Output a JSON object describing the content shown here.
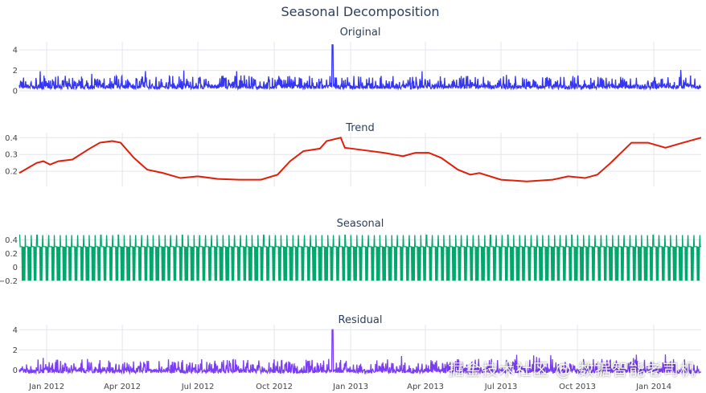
{
  "chart_data": {
    "type": "line",
    "title": "Seasonal Decomposition",
    "x_range": [
      "2011-11-29",
      "2014-02-27"
    ],
    "x_ticks": [
      "Jan 2012",
      "Apr 2012",
      "Jul 2012",
      "Oct 2012",
      "Jan 2013",
      "Apr 2013",
      "Jul 2013",
      "Oct 2013",
      "Jan 2014"
    ],
    "x_tick_dates": [
      "2012-01-01",
      "2012-04-01",
      "2012-07-01",
      "2012-10-01",
      "2013-01-01",
      "2013-04-01",
      "2013-07-01",
      "2013-10-01",
      "2014-01-01"
    ],
    "grid": true,
    "legend": "none",
    "panels": [
      {
        "name": "Original",
        "color": "#3535f5",
        "ylim": [
          0,
          4.8
        ],
        "y_ticks": [
          "0",
          "2",
          "4"
        ],
        "y_tick_values": [
          0,
          2,
          4
        ],
        "description_values": {
          "typical_range": [
            0,
            2
          ],
          "peak": {
            "date": "2012-12-10",
            "value": 4.5
          }
        }
      },
      {
        "name": "Trend",
        "color": "#e01e0a",
        "ylim": [
          0.11,
          0.43
        ],
        "y_ticks": [
          "0.2",
          "0.3",
          "0.4"
        ],
        "y_tick_values": [
          0.2,
          0.3,
          0.4
        ],
        "points": [
          [
            "2011-11-29",
            0.19
          ],
          [
            "2011-12-20",
            0.25
          ],
          [
            "2011-12-28",
            0.26
          ],
          [
            "2012-01-05",
            0.24
          ],
          [
            "2012-01-15",
            0.26
          ],
          [
            "2012-02-01",
            0.27
          ],
          [
            "2012-02-20",
            0.33
          ],
          [
            "2012-03-05",
            0.37
          ],
          [
            "2012-03-20",
            0.38
          ],
          [
            "2012-03-30",
            0.37
          ],
          [
            "2012-04-15",
            0.28
          ],
          [
            "2012-05-01",
            0.21
          ],
          [
            "2012-05-20",
            0.19
          ],
          [
            "2012-06-10",
            0.16
          ],
          [
            "2012-07-01",
            0.17
          ],
          [
            "2012-07-25",
            0.155
          ],
          [
            "2012-08-20",
            0.15
          ],
          [
            "2012-09-15",
            0.15
          ],
          [
            "2012-10-05",
            0.18
          ],
          [
            "2012-10-20",
            0.26
          ],
          [
            "2012-11-05",
            0.32
          ],
          [
            "2012-11-25",
            0.335
          ],
          [
            "2012-12-03",
            0.38
          ],
          [
            "2012-12-20",
            0.4
          ],
          [
            "2012-12-25",
            0.34
          ],
          [
            "2013-01-10",
            0.33
          ],
          [
            "2013-02-10",
            0.31
          ],
          [
            "2013-03-05",
            0.29
          ],
          [
            "2013-03-20",
            0.31
          ],
          [
            "2013-04-05",
            0.31
          ],
          [
            "2013-04-20",
            0.28
          ],
          [
            "2013-05-10",
            0.21
          ],
          [
            "2013-05-25",
            0.18
          ],
          [
            "2013-06-05",
            0.19
          ],
          [
            "2013-07-01",
            0.15
          ],
          [
            "2013-08-01",
            0.14
          ],
          [
            "2013-09-01",
            0.15
          ],
          [
            "2013-09-20",
            0.17
          ],
          [
            "2013-10-10",
            0.16
          ],
          [
            "2013-10-25",
            0.18
          ],
          [
            "2013-11-10",
            0.25
          ],
          [
            "2013-12-05",
            0.37
          ],
          [
            "2013-12-25",
            0.37
          ],
          [
            "2014-01-15",
            0.34
          ],
          [
            "2014-02-05",
            0.37
          ],
          [
            "2014-02-27",
            0.4
          ]
        ]
      },
      {
        "name": "Seasonal",
        "color": "#00a86b",
        "ylim": [
          -0.22,
          0.5
        ],
        "y_ticks": [
          "−0.2",
          "0",
          "0.2",
          "0.4"
        ],
        "y_tick_values": [
          -0.2,
          0,
          0.2,
          0.4
        ],
        "description_values": {
          "period_days": 7,
          "min": -0.2,
          "max": 0.47
        }
      },
      {
        "name": "Residual",
        "color": "#7b3cf5",
        "ylim": [
          -0.6,
          4.5
        ],
        "y_ticks": [
          "0",
          "2",
          "4"
        ],
        "y_tick_values": [
          0,
          2,
          4
        ],
        "description_values": {
          "typical_range": [
            -0.5,
            2
          ],
          "peak": {
            "date": "2012-12-10",
            "value": 4.0
          }
        }
      }
    ]
  },
  "watermark": "掘金技术社区 @ 数据智能老司机"
}
